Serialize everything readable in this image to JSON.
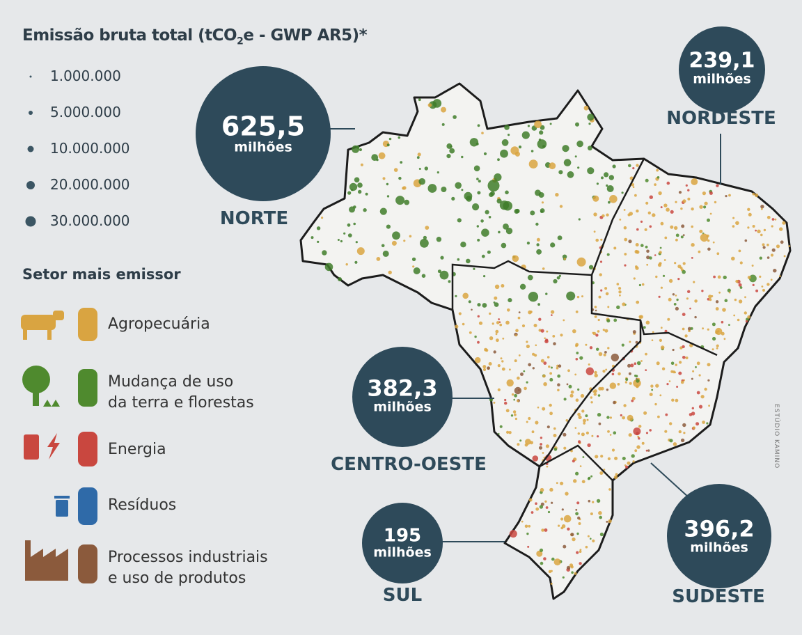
{
  "title": {
    "before": "Emissão bruta total (tCO",
    "sub": "2",
    "after": "e - GWP AR5)*"
  },
  "size_legend": [
    "1.000.000",
    "5.000.000",
    "10.000.000",
    "20.000.000",
    "30.000.000"
  ],
  "sector_legend": {
    "title": "Setor mais emissor",
    "items": [
      [
        "Agropecuária"
      ],
      [
        "Mudança de uso",
        "da terra e florestas"
      ],
      [
        "Energia"
      ],
      [
        "Resíduos"
      ],
      [
        "Processos industriais",
        "e uso de produtos"
      ]
    ]
  },
  "regions": [
    {
      "value": "625,5",
      "unit": "milhões",
      "name": "NORTE"
    },
    {
      "value": "239,1",
      "unit": "milhões",
      "name": "NORDESTE"
    },
    {
      "value": "382,3",
      "unit": "milhões",
      "name": "CENTRO-OESTE"
    },
    {
      "value": "195",
      "unit": "milhões",
      "name": "SUL"
    },
    {
      "value": "396,2",
      "unit": "milhões",
      "name": "SUDESTE"
    }
  ],
  "credit": "ESTÚDIO KAMINO"
}
